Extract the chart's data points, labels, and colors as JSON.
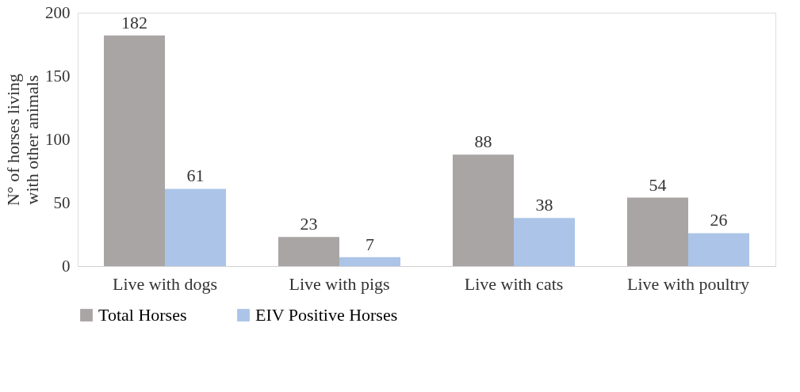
{
  "chart_data": {
    "type": "bar",
    "ylabel": "N° of horses living  with other animals",
    "categories": [
      "Live with dogs",
      "Live with pigs",
      "Live with cats",
      "Live with poultry"
    ],
    "series": [
      {
        "name": "Total Horses",
        "color": "#a9a5a4",
        "values": [
          182,
          23,
          88,
          54
        ]
      },
      {
        "name": "EIV Positive Horses",
        "color": "#abc4e8",
        "values": [
          61,
          7,
          38,
          26
        ]
      }
    ],
    "ylim": [
      0,
      200
    ],
    "yticks": [
      0,
      50,
      100,
      150,
      200
    ],
    "grid": false,
    "legend": "bottom",
    "data_labels": true
  }
}
